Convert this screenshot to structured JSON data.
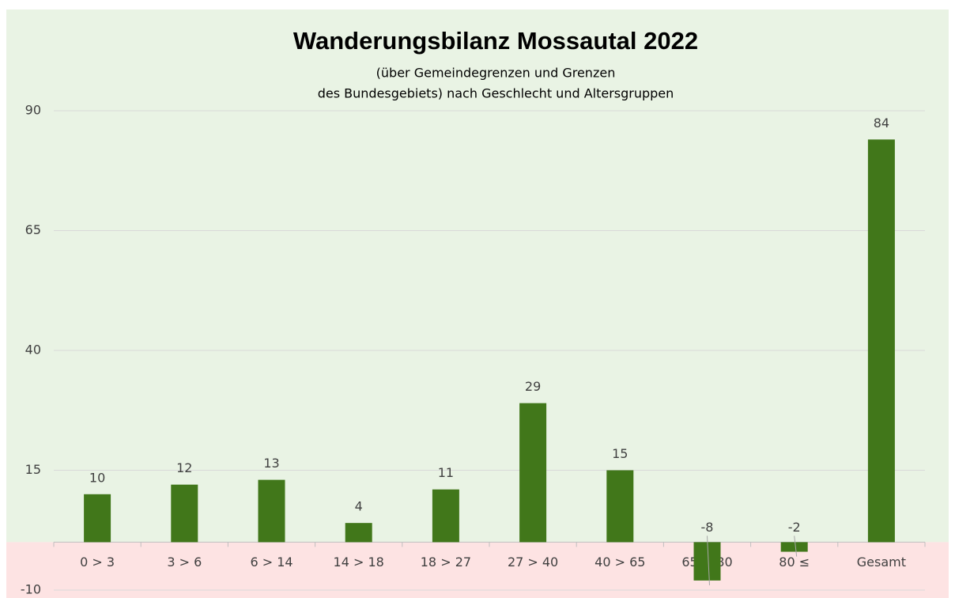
{
  "chart_data": {
    "type": "bar",
    "title": "Wanderungsbilanz Mossautal 2022",
    "subtitle": [
      "(über Gemeindegrenzen  und Grenzen",
      "des Bundesgebiets) nach Geschlecht und Altersgruppen"
    ],
    "categories": [
      "0 > 3",
      "3 > 6",
      "6 > 14",
      "14 > 18",
      "18 > 27",
      "27 > 40",
      "40 > 65",
      "65 > 80",
      "80 ≤",
      "Gesamt"
    ],
    "values": [
      10,
      12,
      13,
      4,
      11,
      29,
      15,
      -8,
      -2,
      84
    ],
    "color": "#41771a",
    "ylim": [
      -10,
      90
    ],
    "yticks": [
      -10,
      15,
      40,
      65,
      90
    ],
    "grid": true
  }
}
